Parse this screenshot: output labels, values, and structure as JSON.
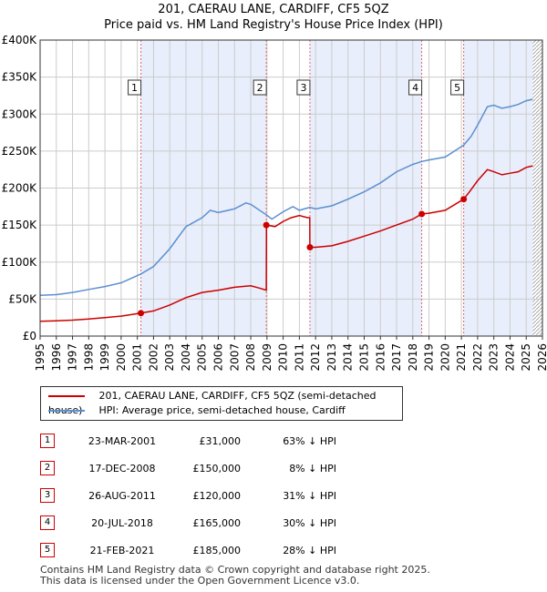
{
  "title_line1": "201, CAERAU LANE, CARDIFF, CF5 5QZ",
  "title_line2": "Price paid vs. HM Land Registry's House Price Index (HPI)",
  "chart_data": {
    "type": "line",
    "x_range": [
      1995,
      2026
    ],
    "y_range": [
      0,
      400000
    ],
    "y_ticks": [
      {
        "value": 0,
        "label": "£0"
      },
      {
        "value": 50000,
        "label": "£50K"
      },
      {
        "value": 100000,
        "label": "£100K"
      },
      {
        "value": 150000,
        "label": "£150K"
      },
      {
        "value": 200000,
        "label": "£200K"
      },
      {
        "value": 250000,
        "label": "£250K"
      },
      {
        "value": 300000,
        "label": "£300K"
      },
      {
        "value": 350000,
        "label": "£350K"
      },
      {
        "value": 400000,
        "label": "£400K"
      }
    ],
    "x_ticks": [
      "1995",
      "1996",
      "1997",
      "1998",
      "1999",
      "2000",
      "2001",
      "2002",
      "2003",
      "2004",
      "2005",
      "2006",
      "2007",
      "2008",
      "2009",
      "2010",
      "2011",
      "2012",
      "2013",
      "2014",
      "2015",
      "2016",
      "2017",
      "2018",
      "2019",
      "2020",
      "2021",
      "2022",
      "2023",
      "2024",
      "2025",
      "2026"
    ],
    "series": [
      {
        "name": "201, CAERAU LANE, CARDIFF, CF5 5QZ (semi-detached house)",
        "color": "#cc0000",
        "points": [
          [
            1995.0,
            20000
          ],
          [
            1996.0,
            20500
          ],
          [
            1997.0,
            21500
          ],
          [
            1998.0,
            23000
          ],
          [
            1999.0,
            25000
          ],
          [
            2000.0,
            27000
          ],
          [
            2001.22,
            31000
          ],
          [
            2002.0,
            34000
          ],
          [
            2003.0,
            42000
          ],
          [
            2004.0,
            52000
          ],
          [
            2005.0,
            59000
          ],
          [
            2006.0,
            62000
          ],
          [
            2007.0,
            66000
          ],
          [
            2008.0,
            68000
          ],
          [
            2008.5,
            65000
          ],
          [
            2008.96,
            62000
          ],
          [
            2008.97,
            150000
          ],
          [
            2009.5,
            148000
          ],
          [
            2010.0,
            155000
          ],
          [
            2010.5,
            160000
          ],
          [
            2011.0,
            163000
          ],
          [
            2011.5,
            160000
          ],
          [
            2011.64,
            160000
          ],
          [
            2011.65,
            120000
          ],
          [
            2012.0,
            120000
          ],
          [
            2013.0,
            122000
          ],
          [
            2014.0,
            128000
          ],
          [
            2015.0,
            135000
          ],
          [
            2016.0,
            142000
          ],
          [
            2017.0,
            150000
          ],
          [
            2018.0,
            158000
          ],
          [
            2018.55,
            165000
          ],
          [
            2019.0,
            166000
          ],
          [
            2020.0,
            170000
          ],
          [
            2021.14,
            185000
          ],
          [
            2021.5,
            195000
          ],
          [
            2022.0,
            210000
          ],
          [
            2022.6,
            225000
          ],
          [
            2023.0,
            222000
          ],
          [
            2023.5,
            218000
          ],
          [
            2024.0,
            220000
          ],
          [
            2024.5,
            222000
          ],
          [
            2025.0,
            228000
          ],
          [
            2025.4,
            230000
          ]
        ]
      },
      {
        "name": "HPI: Average price, semi-detached house, Cardiff",
        "color": "#5b8fd0",
        "points": [
          [
            1995.0,
            55000
          ],
          [
            1996.0,
            56000
          ],
          [
            1997.0,
            59000
          ],
          [
            1998.0,
            63000
          ],
          [
            1999.0,
            67000
          ],
          [
            2000.0,
            72000
          ],
          [
            2001.22,
            84000
          ],
          [
            2002.0,
            94000
          ],
          [
            2003.0,
            118000
          ],
          [
            2004.0,
            148000
          ],
          [
            2005.0,
            160000
          ],
          [
            2005.5,
            170000
          ],
          [
            2006.0,
            167000
          ],
          [
            2007.0,
            172000
          ],
          [
            2007.7,
            180000
          ],
          [
            2008.0,
            178000
          ],
          [
            2008.96,
            164000
          ],
          [
            2009.3,
            158000
          ],
          [
            2010.0,
            168000
          ],
          [
            2010.6,
            175000
          ],
          [
            2011.0,
            170000
          ],
          [
            2011.64,
            174000
          ],
          [
            2012.0,
            172000
          ],
          [
            2013.0,
            176000
          ],
          [
            2014.0,
            185000
          ],
          [
            2015.0,
            195000
          ],
          [
            2016.0,
            207000
          ],
          [
            2017.0,
            222000
          ],
          [
            2018.0,
            232000
          ],
          [
            2018.55,
            236000
          ],
          [
            2019.0,
            238000
          ],
          [
            2020.0,
            242000
          ],
          [
            2021.14,
            258000
          ],
          [
            2021.6,
            270000
          ],
          [
            2022.0,
            285000
          ],
          [
            2022.6,
            310000
          ],
          [
            2023.0,
            312000
          ],
          [
            2023.5,
            308000
          ],
          [
            2024.0,
            310000
          ],
          [
            2024.5,
            313000
          ],
          [
            2025.0,
            318000
          ],
          [
            2025.4,
            320000
          ]
        ]
      }
    ],
    "markers": [
      {
        "label": "1",
        "x": 2001.22,
        "y": 31000
      },
      {
        "label": "2",
        "x": 2008.96,
        "y": 150000
      },
      {
        "label": "3",
        "x": 2011.65,
        "y": 120000
      },
      {
        "label": "4",
        "x": 2018.55,
        "y": 165000
      },
      {
        "label": "5",
        "x": 2021.14,
        "y": 185000
      }
    ],
    "shaded_ranges": [
      [
        2001.22,
        2008.96
      ],
      [
        2011.65,
        2018.55
      ],
      [
        2021.14,
        2025.4
      ]
    ],
    "hatched_range": [
      2025.4,
      2026.0
    ]
  },
  "legend": {
    "property_label": "201, CAERAU LANE, CARDIFF, CF5 5QZ (semi-detached house)",
    "hpi_label": "HPI: Average price, semi-detached house, Cardiff",
    "property_color": "#cc0000",
    "hpi_color": "#5b8fd0"
  },
  "transactions": [
    {
      "num": "1",
      "date": "23-MAR-2001",
      "price": "£31,000",
      "hpi": "63% ↓ HPI"
    },
    {
      "num": "2",
      "date": "17-DEC-2008",
      "price": "£150,000",
      "hpi": "8% ↓ HPI"
    },
    {
      "num": "3",
      "date": "26-AUG-2011",
      "price": "£120,000",
      "hpi": "31% ↓ HPI"
    },
    {
      "num": "4",
      "date": "20-JUL-2018",
      "price": "£165,000",
      "hpi": "30% ↓ HPI"
    },
    {
      "num": "5",
      "date": "21-FEB-2021",
      "price": "£185,000",
      "hpi": "28% ↓ HPI"
    }
  ],
  "footer": {
    "line1": "Contains HM Land Registry data © Crown copyright and database right 2025.",
    "line2": "This data is licensed under the Open Government Licence v3.0."
  }
}
